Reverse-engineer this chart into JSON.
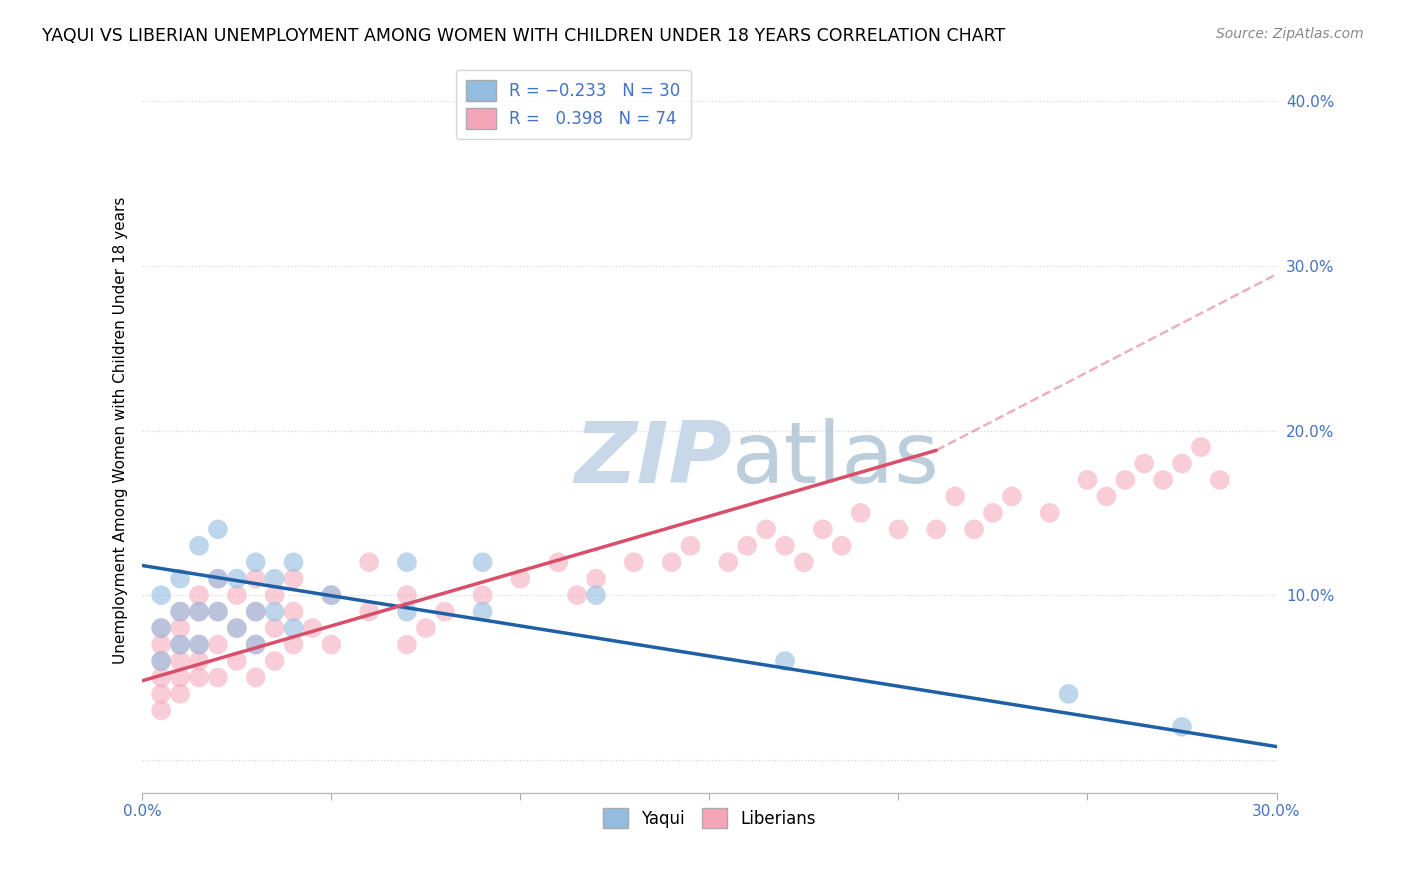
{
  "title": "YAQUI VS LIBERIAN UNEMPLOYMENT AMONG WOMEN WITH CHILDREN UNDER 18 YEARS CORRELATION CHART",
  "source": "Source: ZipAtlas.com",
  "ylabel": "Unemployment Among Women with Children Under 18 years",
  "yaqui_R": -0.233,
  "yaqui_N": 30,
  "liberian_R": 0.398,
  "liberian_N": 74,
  "xlim": [
    0.0,
    0.3
  ],
  "ylim": [
    -0.02,
    0.42
  ],
  "xtick_positions": [
    0.0,
    0.3
  ],
  "xtick_labels": [
    "0.0%",
    "30.0%"
  ],
  "ytick_positions": [
    0.0,
    0.1,
    0.2,
    0.3,
    0.4
  ],
  "ytick_labels": [
    "",
    "10.0%",
    "20.0%",
    "30.0%",
    "40.0%"
  ],
  "yaqui_color": "#92bce0",
  "liberian_color": "#f4a5b8",
  "yaqui_line_color": "#1f5fa6",
  "liberian_line_color": "#d94f6a",
  "liberian_line_color_dashed": "#d94f6a",
  "watermark_color": "#c8d8e8",
  "background_color": "#ffffff",
  "grid_color": "#cccccc",
  "yaqui_x": [
    0.005,
    0.005,
    0.005,
    0.01,
    0.01,
    0.01,
    0.015,
    0.015,
    0.015,
    0.02,
    0.02,
    0.02,
    0.025,
    0.025,
    0.03,
    0.03,
    0.03,
    0.035,
    0.035,
    0.04,
    0.04,
    0.05,
    0.07,
    0.07,
    0.09,
    0.09,
    0.12,
    0.17,
    0.245,
    0.275
  ],
  "yaqui_y": [
    0.06,
    0.08,
    0.1,
    0.07,
    0.09,
    0.11,
    0.07,
    0.09,
    0.13,
    0.09,
    0.11,
    0.14,
    0.08,
    0.11,
    0.07,
    0.09,
    0.12,
    0.09,
    0.11,
    0.08,
    0.12,
    0.1,
    0.09,
    0.12,
    0.09,
    0.12,
    0.1,
    0.06,
    0.04,
    0.02
  ],
  "liberian_x": [
    0.005,
    0.005,
    0.005,
    0.005,
    0.005,
    0.005,
    0.01,
    0.01,
    0.01,
    0.01,
    0.01,
    0.01,
    0.015,
    0.015,
    0.015,
    0.015,
    0.015,
    0.02,
    0.02,
    0.02,
    0.02,
    0.025,
    0.025,
    0.025,
    0.03,
    0.03,
    0.03,
    0.03,
    0.035,
    0.035,
    0.035,
    0.04,
    0.04,
    0.04,
    0.045,
    0.05,
    0.05,
    0.06,
    0.06,
    0.07,
    0.07,
    0.075,
    0.08,
    0.09,
    0.1,
    0.11,
    0.115,
    0.12,
    0.13,
    0.14,
    0.145,
    0.155,
    0.16,
    0.165,
    0.17,
    0.175,
    0.18,
    0.185,
    0.19,
    0.2,
    0.21,
    0.215,
    0.22,
    0.225,
    0.23,
    0.24,
    0.25,
    0.255,
    0.26,
    0.265,
    0.27,
    0.275,
    0.28,
    0.285
  ],
  "liberian_y": [
    0.06,
    0.07,
    0.08,
    0.05,
    0.04,
    0.03,
    0.07,
    0.08,
    0.09,
    0.06,
    0.05,
    0.04,
    0.07,
    0.09,
    0.1,
    0.06,
    0.05,
    0.09,
    0.11,
    0.07,
    0.05,
    0.08,
    0.1,
    0.06,
    0.09,
    0.11,
    0.07,
    0.05,
    0.08,
    0.1,
    0.06,
    0.09,
    0.11,
    0.07,
    0.08,
    0.1,
    0.07,
    0.09,
    0.12,
    0.1,
    0.07,
    0.08,
    0.09,
    0.1,
    0.11,
    0.12,
    0.1,
    0.11,
    0.12,
    0.12,
    0.13,
    0.12,
    0.13,
    0.14,
    0.13,
    0.12,
    0.14,
    0.13,
    0.15,
    0.14,
    0.14,
    0.16,
    0.14,
    0.15,
    0.16,
    0.15,
    0.17,
    0.16,
    0.17,
    0.18,
    0.17,
    0.18,
    0.19,
    0.17
  ],
  "yaqui_line_x0": 0.0,
  "yaqui_line_y0": 0.118,
  "yaqui_line_x1": 0.3,
  "yaqui_line_y1": 0.008,
  "liberian_line_x0": 0.0,
  "liberian_line_y0": 0.048,
  "liberian_line_solid_x1": 0.21,
  "liberian_line_solid_y1": 0.188,
  "liberian_line_dashed_x1": 0.3,
  "liberian_line_dashed_y1": 0.295
}
